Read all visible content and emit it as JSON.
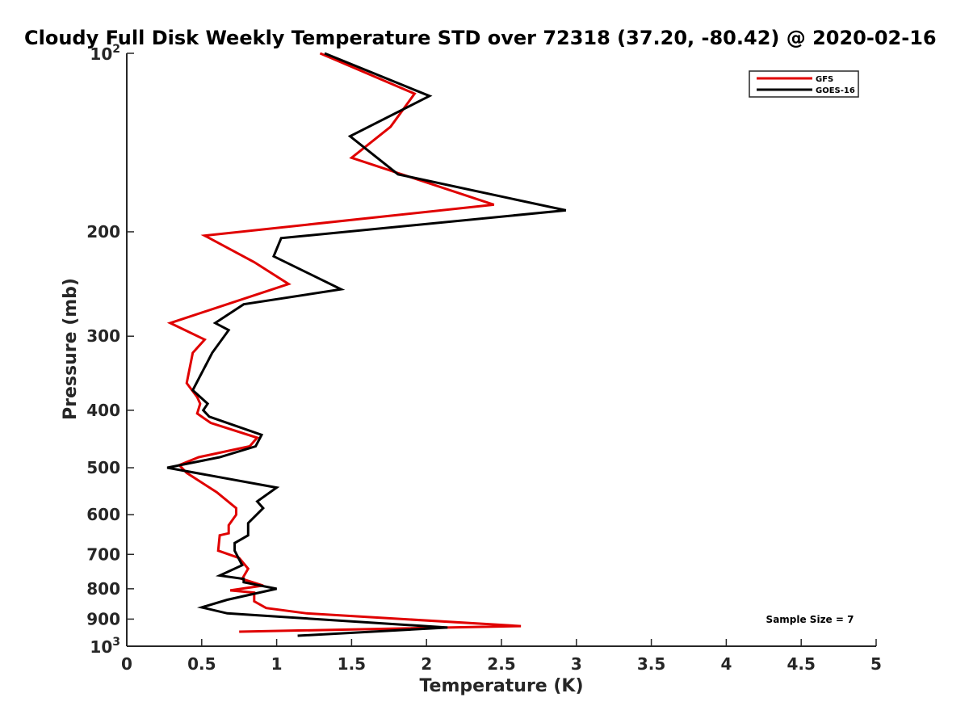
{
  "chart_data": {
    "type": "line",
    "title": "Cloudy Full Disk Weekly Temperature STD over 72318 (37.20, -80.42) @ 2020-02-16",
    "xlabel": "Temperature (K)",
    "ylabel": "Pressure (mb)",
    "xlim": [
      0,
      5
    ],
    "ylim": [
      100,
      1000
    ],
    "yscale": "log",
    "y_reversed": true,
    "x_ticks": [
      0,
      0.5,
      1,
      1.5,
      2,
      2.5,
      3,
      3.5,
      4,
      4.5,
      5
    ],
    "x_tick_labels": [
      "0",
      "0.5",
      "1",
      "1.5",
      "2",
      "2.5",
      "3",
      "3.5",
      "4",
      "4.5",
      "5"
    ],
    "y_ticks": [
      200,
      300,
      400,
      500,
      600,
      700,
      800,
      900
    ],
    "y_tick_labels": [
      "200",
      "300",
      "400",
      "500",
      "600",
      "700",
      "800",
      "900"
    ],
    "y_limit_labels": [
      {
        "value": 100,
        "base": "10",
        "exp": "2"
      },
      {
        "value": 1000,
        "base": "10",
        "exp": "3"
      }
    ],
    "legend_position": "top-right",
    "annotation": "Sample Size = 7",
    "series": [
      {
        "name": "GFS",
        "color": "#e00000",
        "points": [
          [
            1.29,
            100
          ],
          [
            1.92,
            117
          ],
          [
            1.76,
            133
          ],
          [
            1.5,
            150
          ],
          [
            2.45,
            180
          ],
          [
            0.52,
            203
          ],
          [
            0.85,
            225
          ],
          [
            1.08,
            245
          ],
          [
            0.29,
            285
          ],
          [
            0.52,
            304
          ],
          [
            0.44,
            320
          ],
          [
            0.4,
            360
          ],
          [
            0.47,
            380
          ],
          [
            0.49,
            390
          ],
          [
            0.47,
            405
          ],
          [
            0.56,
            420
          ],
          [
            0.87,
            445
          ],
          [
            0.82,
            460
          ],
          [
            0.48,
            480
          ],
          [
            0.35,
            495
          ],
          [
            0.4,
            510
          ],
          [
            0.6,
            550
          ],
          [
            0.73,
            585
          ],
          [
            0.73,
            600
          ],
          [
            0.68,
            625
          ],
          [
            0.68,
            645
          ],
          [
            0.62,
            650
          ],
          [
            0.61,
            690
          ],
          [
            0.75,
            710
          ],
          [
            0.81,
            740
          ],
          [
            0.77,
            770
          ],
          [
            0.91,
            790
          ],
          [
            0.69,
            805
          ],
          [
            0.85,
            812
          ],
          [
            0.85,
            840
          ],
          [
            0.93,
            862
          ],
          [
            1.2,
            880
          ],
          [
            2.63,
            925
          ],
          [
            0.75,
            945
          ]
        ]
      },
      {
        "name": "GOES-16",
        "color": "#000000",
        "points": [
          [
            1.32,
            100
          ],
          [
            2.02,
            118
          ],
          [
            1.49,
            138
          ],
          [
            1.81,
            160
          ],
          [
            2.93,
            184
          ],
          [
            1.03,
            205
          ],
          [
            0.98,
            220
          ],
          [
            1.43,
            250
          ],
          [
            0.78,
            265
          ],
          [
            0.59,
            285
          ],
          [
            0.68,
            293
          ],
          [
            0.57,
            320
          ],
          [
            0.44,
            370
          ],
          [
            0.54,
            390
          ],
          [
            0.51,
            400
          ],
          [
            0.55,
            410
          ],
          [
            0.9,
            440
          ],
          [
            0.86,
            460
          ],
          [
            0.62,
            480
          ],
          [
            0.27,
            500
          ],
          [
            1.0,
            540
          ],
          [
            0.87,
            570
          ],
          [
            0.91,
            585
          ],
          [
            0.81,
            620
          ],
          [
            0.81,
            650
          ],
          [
            0.72,
            670
          ],
          [
            0.72,
            690
          ],
          [
            0.77,
            730
          ],
          [
            0.62,
            760
          ],
          [
            0.78,
            770
          ],
          [
            0.78,
            780
          ],
          [
            1.0,
            800
          ],
          [
            0.67,
            835
          ],
          [
            0.5,
            860
          ],
          [
            0.67,
            880
          ],
          [
            2.14,
            930
          ],
          [
            1.14,
            960
          ]
        ]
      }
    ]
  }
}
